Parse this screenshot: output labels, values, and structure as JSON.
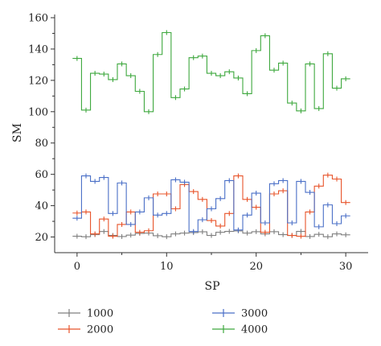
{
  "chart_data": {
    "type": "line",
    "step": true,
    "xlabel": "SP",
    "ylabel": "SM",
    "xlim": [
      -2.5,
      32.5
    ],
    "ylim": [
      10,
      160
    ],
    "xticks": [
      0,
      10,
      20,
      30
    ],
    "yticks": [
      20,
      40,
      60,
      80,
      100,
      120,
      140,
      160
    ],
    "grid": false,
    "legend": "bottom",
    "series": [
      {
        "name": "1000",
        "color": "#7f7f7f",
        "x": [
          0,
          1,
          2,
          3,
          4,
          5,
          6,
          7,
          8,
          9,
          10,
          11,
          12,
          13,
          14,
          15,
          16,
          17,
          18,
          19,
          20,
          21,
          22,
          23,
          24,
          25,
          26,
          27,
          28,
          29,
          30
        ],
        "values": [
          20.5,
          20.2,
          21.5,
          23.5,
          21.0,
          20.3,
          21.2,
          22.3,
          22.5,
          20.8,
          20.2,
          22.0,
          22.5,
          22.8,
          23.3,
          21.0,
          23.0,
          23.6,
          23.9,
          22.5,
          23.4,
          22.0,
          23.4,
          21.5,
          21.0,
          23.6,
          20.3,
          21.7,
          20.2,
          22.0,
          21.4
        ]
      },
      {
        "name": "2000",
        "color": "#e8542a",
        "x": [
          0,
          1,
          2,
          3,
          4,
          5,
          6,
          7,
          8,
          9,
          10,
          11,
          12,
          13,
          14,
          15,
          16,
          17,
          18,
          19,
          20,
          21,
          22,
          23,
          24,
          25,
          26,
          27,
          28,
          29,
          30
        ],
        "values": [
          35.3,
          36.0,
          22.0,
          31.5,
          20.5,
          28.0,
          36.0,
          23.0,
          24.0,
          47.5,
          47.5,
          38.0,
          53.5,
          49.0,
          44.0,
          30.5,
          27.0,
          35.0,
          59.0,
          44.0,
          39.0,
          23.0,
          47.5,
          49.5,
          21.0,
          20.5,
          36.0,
          52.5,
          59.5,
          57.0,
          42.0
        ]
      },
      {
        "name": "3000",
        "color": "#4a6fc7",
        "x": [
          0,
          1,
          2,
          3,
          4,
          5,
          6,
          7,
          8,
          9,
          10,
          11,
          12,
          13,
          14,
          15,
          16,
          17,
          18,
          19,
          20,
          21,
          22,
          23,
          24,
          25,
          26,
          27,
          28,
          29,
          30
        ],
        "values": [
          32.0,
          59.0,
          55.5,
          58.0,
          35.0,
          54.5,
          28.0,
          36.0,
          45.0,
          34.0,
          35.0,
          56.5,
          55.0,
          23.5,
          31.0,
          38.0,
          44.5,
          56.0,
          24.5,
          34.0,
          48.0,
          29.0,
          54.0,
          56.0,
          29.0,
          55.5,
          48.5,
          26.5,
          40.5,
          28.5,
          33.5
        ]
      },
      {
        "name": "4000",
        "color": "#3ea83e",
        "x": [
          0,
          1,
          2,
          3,
          4,
          5,
          6,
          7,
          8,
          9,
          10,
          11,
          12,
          13,
          14,
          15,
          16,
          17,
          18,
          19,
          20,
          21,
          22,
          23,
          24,
          25,
          26,
          27,
          28,
          29,
          30
        ],
        "values": [
          134.0,
          101.0,
          124.5,
          124.0,
          120.5,
          130.5,
          123.0,
          113.0,
          100.0,
          136.5,
          150.5,
          109.0,
          114.5,
          134.5,
          135.5,
          124.5,
          123.0,
          125.5,
          121.5,
          111.5,
          139.0,
          148.5,
          126.5,
          131.0,
          105.5,
          100.5,
          130.5,
          102.0,
          137.0,
          115.0,
          121.0
        ]
      }
    ]
  }
}
